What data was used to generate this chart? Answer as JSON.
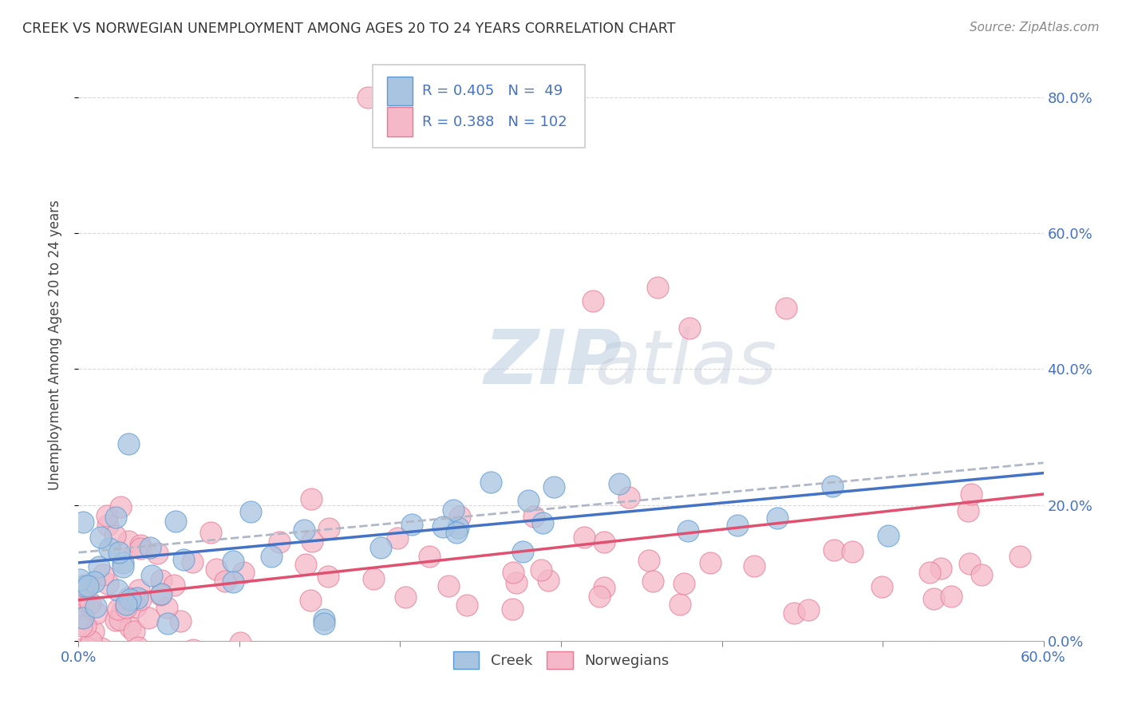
{
  "title": "CREEK VS NORWEGIAN UNEMPLOYMENT AMONG AGES 20 TO 24 YEARS CORRELATION CHART",
  "source": "Source: ZipAtlas.com",
  "ylabel": "Unemployment Among Ages 20 to 24 years",
  "xlim": [
    0.0,
    0.6
  ],
  "ylim": [
    0.0,
    0.87
  ],
  "x_ticks": [
    0.0,
    0.1,
    0.2,
    0.3,
    0.4,
    0.5,
    0.6
  ],
  "x_labels": [
    "0.0%",
    "",
    "",
    "",
    "",
    "",
    "60.0%"
  ],
  "y_ticks": [
    0.0,
    0.2,
    0.4,
    0.6,
    0.8
  ],
  "y_labels": [
    "0.0%",
    "20.0%",
    "40.0%",
    "60.0%",
    "80.0%"
  ],
  "creek_R": 0.405,
  "creek_N": 49,
  "norwegian_R": 0.388,
  "norwegian_N": 102,
  "creek_color": "#a8c4e0",
  "creek_edge_color": "#5b9bd5",
  "norwegian_color": "#f4b8c8",
  "norwegian_edge_color": "#e87a96",
  "creek_line_color": "#4472c4",
  "norwegian_line_color": "#e05070",
  "dashed_line_color": "#b0b8c8",
  "background_color": "#ffffff",
  "watermark_color": "#c8d4e4",
  "grid_color": "#d8d8d8"
}
